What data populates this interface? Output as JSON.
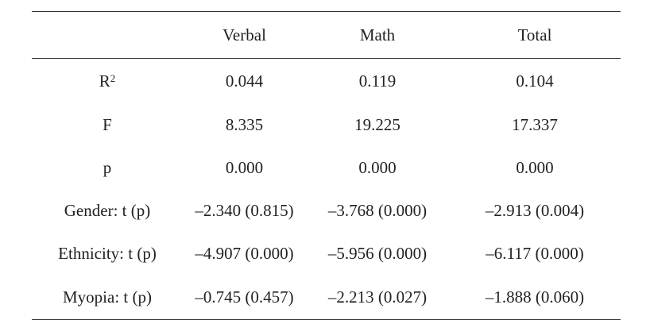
{
  "table": {
    "columns": [
      "",
      "Verbal",
      "Math",
      "Total"
    ],
    "rows": [
      {
        "label": "R",
        "label_sup": "2",
        "values": [
          "0.044",
          "0.119",
          "0.104"
        ]
      },
      {
        "label": "F",
        "label_sup": "",
        "values": [
          "8.335",
          "19.225",
          "17.337"
        ]
      },
      {
        "label": "p",
        "label_sup": "",
        "values": [
          "0.000",
          "0.000",
          "0.000"
        ]
      },
      {
        "label": "Gender: t (p)",
        "label_sup": "",
        "values": [
          "–2.340 (0.815)",
          "–3.768 (0.000)",
          "–2.913 (0.004)"
        ]
      },
      {
        "label": "Ethnicity: t (p)",
        "label_sup": "",
        "values": [
          "–4.907 (0.000)",
          "–5.956 (0.000)",
          "–6.117 (0.000)"
        ]
      },
      {
        "label": "Myopia: t (p)",
        "label_sup": "",
        "values": [
          "–0.745 (0.457)",
          "–2.213 (0.027)",
          "–1.888 (0.060)"
        ]
      }
    ]
  }
}
